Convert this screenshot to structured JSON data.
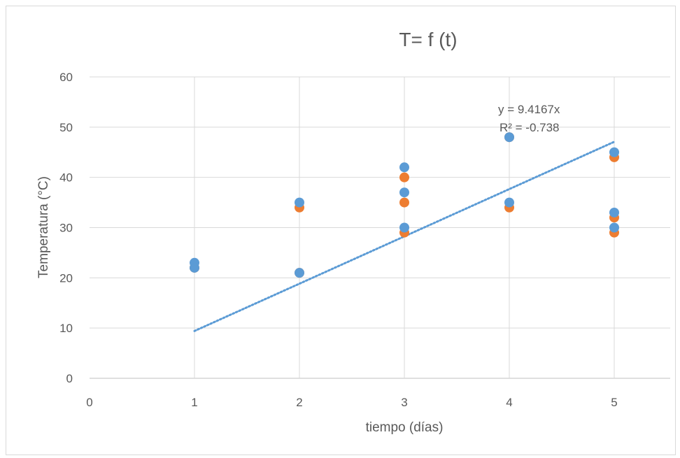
{
  "chart_data": {
    "type": "scatter",
    "title": "T= f (t)",
    "xlabel": "tiempo (días)",
    "ylabel": "Temperatura (°C)",
    "xlim": [
      0,
      5
    ],
    "ylim": [
      0,
      60
    ],
    "x_ticks": [
      "0",
      "1",
      "2",
      "3",
      "4",
      "5"
    ],
    "y_ticks": [
      "0",
      "10",
      "20",
      "30",
      "40",
      "50",
      "60"
    ],
    "grid": true,
    "legend": "none",
    "series": [
      {
        "color": "#ed7d31",
        "points": [
          [
            1,
            22
          ],
          [
            2,
            34
          ],
          [
            2,
            21
          ],
          [
            3,
            40
          ],
          [
            3,
            35
          ],
          [
            3,
            29
          ],
          [
            4,
            34
          ],
          [
            4,
            48
          ],
          [
            5,
            44
          ],
          [
            5,
            32
          ],
          [
            5,
            29
          ]
        ]
      },
      {
        "color": "#5b9bd5",
        "points": [
          [
            1,
            23
          ],
          [
            1,
            22
          ],
          [
            2,
            35
          ],
          [
            2,
            21
          ],
          [
            3,
            42
          ],
          [
            3,
            37
          ],
          [
            3,
            30
          ],
          [
            4,
            48
          ],
          [
            4,
            35
          ],
          [
            5,
            45
          ],
          [
            5,
            33
          ],
          [
            5,
            30
          ]
        ]
      }
    ],
    "trendline": {
      "color": "#5b9bd5",
      "slope": 9.4167,
      "x_range": [
        1,
        5
      ],
      "equation": "y = 9.4167x",
      "r2": "R² = -0.738"
    }
  }
}
